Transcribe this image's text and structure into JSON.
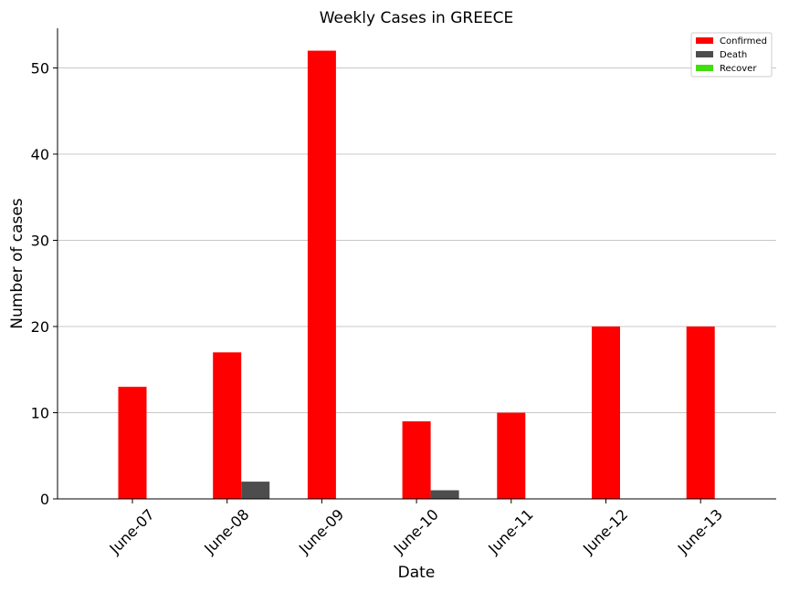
{
  "chart_data": {
    "type": "bar",
    "title": "Weekly Cases in GREECE",
    "xlabel": "Date",
    "ylabel": "Number of cases",
    "categories": [
      "June-07",
      "June-08",
      "June-09",
      "June-10",
      "June-11",
      "June-12",
      "June-13"
    ],
    "series": [
      {
        "name": "Confirmed",
        "color": "#ff0000",
        "values": [
          13,
          17,
          52,
          9,
          10,
          20,
          20
        ]
      },
      {
        "name": "Death",
        "color": "#4d4d4d",
        "values": [
          0,
          2,
          0,
          1,
          0,
          0,
          0
        ]
      },
      {
        "name": "Recover",
        "color": "#44dd11",
        "values": [
          0,
          0,
          0,
          0,
          0,
          0,
          0
        ]
      }
    ],
    "ylim": [
      0,
      54.6
    ],
    "yticks": [
      0,
      10,
      20,
      30,
      40,
      50
    ],
    "grid": "horizontal",
    "legend_position": "top-right"
  }
}
